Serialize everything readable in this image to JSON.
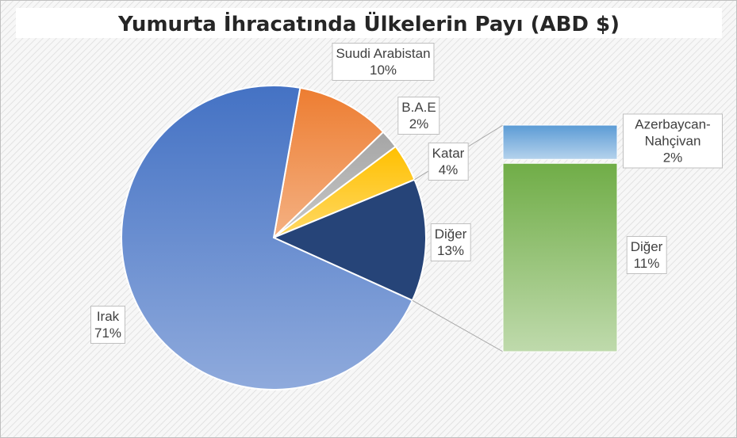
{
  "chart_data": {
    "type": "pie",
    "title": "Yumurta İhracatında Ülkelerin Payı (ABD $)",
    "categories": [
      "Suudi Arabistan",
      "B.A.E",
      "Katar",
      "Diğer",
      "Irak"
    ],
    "values": [
      10,
      2,
      4,
      13,
      71
    ],
    "value_labels": [
      "10%",
      "2%",
      "4%",
      "13%",
      "71%"
    ],
    "colors": [
      "#ed7d31",
      "#a5a5a5",
      "#ffc000",
      "#264478",
      "#4472c4"
    ],
    "breakdown": {
      "type": "bar",
      "categories": [
        "Azerbaycan-Nahçivan",
        "Diğer"
      ],
      "values": [
        2,
        11
      ],
      "value_labels": [
        "2%",
        "11%"
      ],
      "colors": [
        "#5b9bd5",
        "#70ad47"
      ]
    }
  }
}
